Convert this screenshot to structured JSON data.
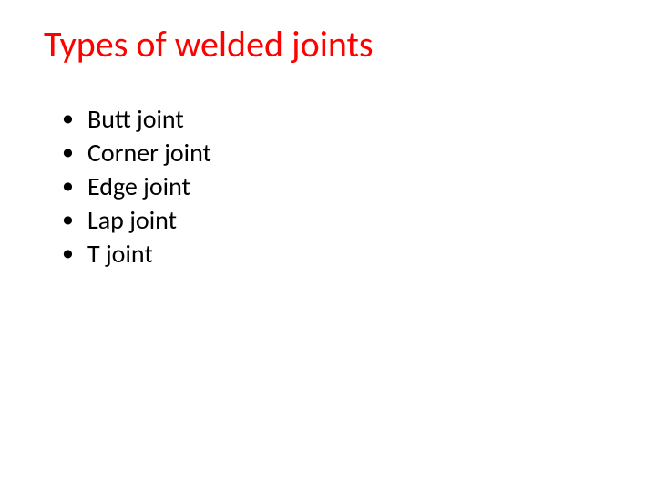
{
  "slide": {
    "title": "Types of welded joints",
    "title_color": "#ff0000",
    "title_fontsize": 40,
    "body_color": "#000000",
    "body_fontsize": 28,
    "background_color": "#ffffff",
    "bullets": [
      "Butt joint",
      "Corner joint",
      "Edge joint",
      "Lap joint",
      "T joint"
    ]
  }
}
